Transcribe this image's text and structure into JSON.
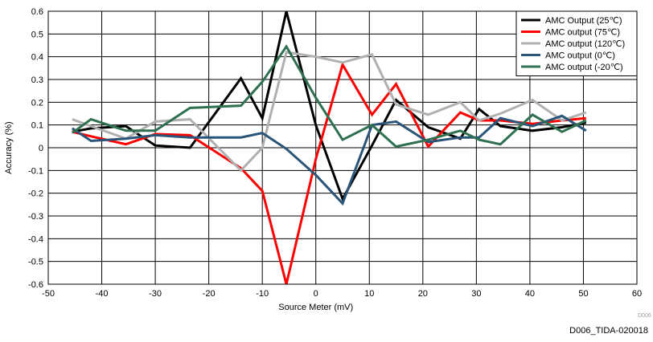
{
  "figure_id": "D006_TIDA-020018",
  "watermark": "D006",
  "chart_data": {
    "type": "line",
    "xlabel": "Source Meter (mV)",
    "ylabel": "Accuracy (%)",
    "xlim": [
      -50,
      60
    ],
    "ylim": [
      -0.6,
      0.6
    ],
    "xticks": [
      -50,
      -40,
      -30,
      -20,
      -10,
      0,
      10,
      20,
      30,
      40,
      50,
      60
    ],
    "yticks": [
      -0.6,
      -0.5,
      -0.4,
      -0.3,
      -0.2,
      -0.1,
      0,
      0.1,
      0.2,
      0.3,
      0.4,
      0.5,
      0.6
    ],
    "xtick_labels": [
      "-50",
      "-40",
      "-30",
      "-20",
      "-10",
      "0",
      "10",
      "20",
      "30",
      "40",
      "50",
      "60"
    ],
    "ytick_labels": [
      "-0.6",
      "-0.5",
      "-0.4",
      "-0.3",
      "-0.2",
      "-0.1",
      "0",
      "0.1",
      "0.2",
      "0.3",
      "0.4",
      "0.5",
      "0.6"
    ],
    "grid": true,
    "legend_position": "top-right",
    "series": [
      {
        "name": "AMC Output (25℃)",
        "color": "#000000",
        "x": [
          -45.5,
          -42,
          -35.5,
          -30,
          -23.5,
          -14,
          -10,
          -5.5,
          0,
          5,
          10.5,
          15,
          21,
          27,
          30.5,
          34.5,
          40.5,
          46,
          50.5
        ],
        "y": [
          0.07,
          0.085,
          0.095,
          0.01,
          0,
          0.305,
          0.13,
          0.6,
          0.1,
          -0.225,
          0.01,
          0.21,
          0.09,
          0.04,
          0.17,
          0.095,
          0.075,
          0.09,
          0.11
        ]
      },
      {
        "name": "AMC output (75℃)",
        "color": "#ff0000",
        "x": [
          -45.5,
          -42,
          -35.5,
          -30,
          -23.5,
          -14,
          -10,
          -5.5,
          0,
          5,
          10.5,
          15,
          21,
          27,
          30.5,
          34.5,
          40.5,
          46,
          50.5
        ],
        "y": [
          0.07,
          0.05,
          0.015,
          0.06,
          0.055,
          -0.09,
          -0.19,
          -0.6,
          -0.05,
          0.365,
          0.145,
          0.28,
          0.005,
          0.155,
          0.12,
          0.12,
          0.105,
          0.12,
          0.13
        ]
      },
      {
        "name": "AMC output (120℃)",
        "color": "#b0b0b0",
        "x": [
          -45.5,
          -42,
          -35.5,
          -30,
          -23.5,
          -14,
          -10,
          -5.5,
          0,
          5,
          10.5,
          15,
          21,
          27,
          30.5,
          34.5,
          40.5,
          46,
          50.5
        ],
        "y": [
          0.125,
          0.095,
          0.04,
          0.115,
          0.125,
          -0.1,
          0,
          0.42,
          0.4,
          0.375,
          0.41,
          0.19,
          0.145,
          0.2,
          0.12,
          0.15,
          0.21,
          0.12,
          0.155
        ]
      },
      {
        "name": "AMC output (0℃)",
        "color": "#2a5578",
        "x": [
          -45.5,
          -42,
          -35.5,
          -30,
          -23.5,
          -14,
          -10,
          -5.5,
          0,
          5,
          10.5,
          15,
          21,
          27,
          30.5,
          34.5,
          40.5,
          46,
          50.5
        ],
        "y": [
          0.085,
          0.03,
          0.04,
          0.055,
          0.045,
          0.045,
          0.065,
          -0.005,
          -0.12,
          -0.245,
          0.1,
          0.115,
          0.025,
          0.045,
          0.045,
          0.13,
          0.095,
          0.14,
          0.075
        ]
      },
      {
        "name": "AMC output (-20℃)",
        "color": "#2e7050",
        "x": [
          -45.5,
          -42,
          -35.5,
          -30,
          -23.5,
          -14,
          -10,
          -5.5,
          0,
          5,
          10.5,
          15,
          21,
          27,
          30.5,
          34.5,
          40.5,
          46,
          50.5
        ],
        "y": [
          0.065,
          0.125,
          0.075,
          0.075,
          0.175,
          0.185,
          0.29,
          0.445,
          0.22,
          0.035,
          0.1,
          0.005,
          0.035,
          0.075,
          0.035,
          0.015,
          0.145,
          0.07,
          0.12
        ]
      }
    ]
  }
}
